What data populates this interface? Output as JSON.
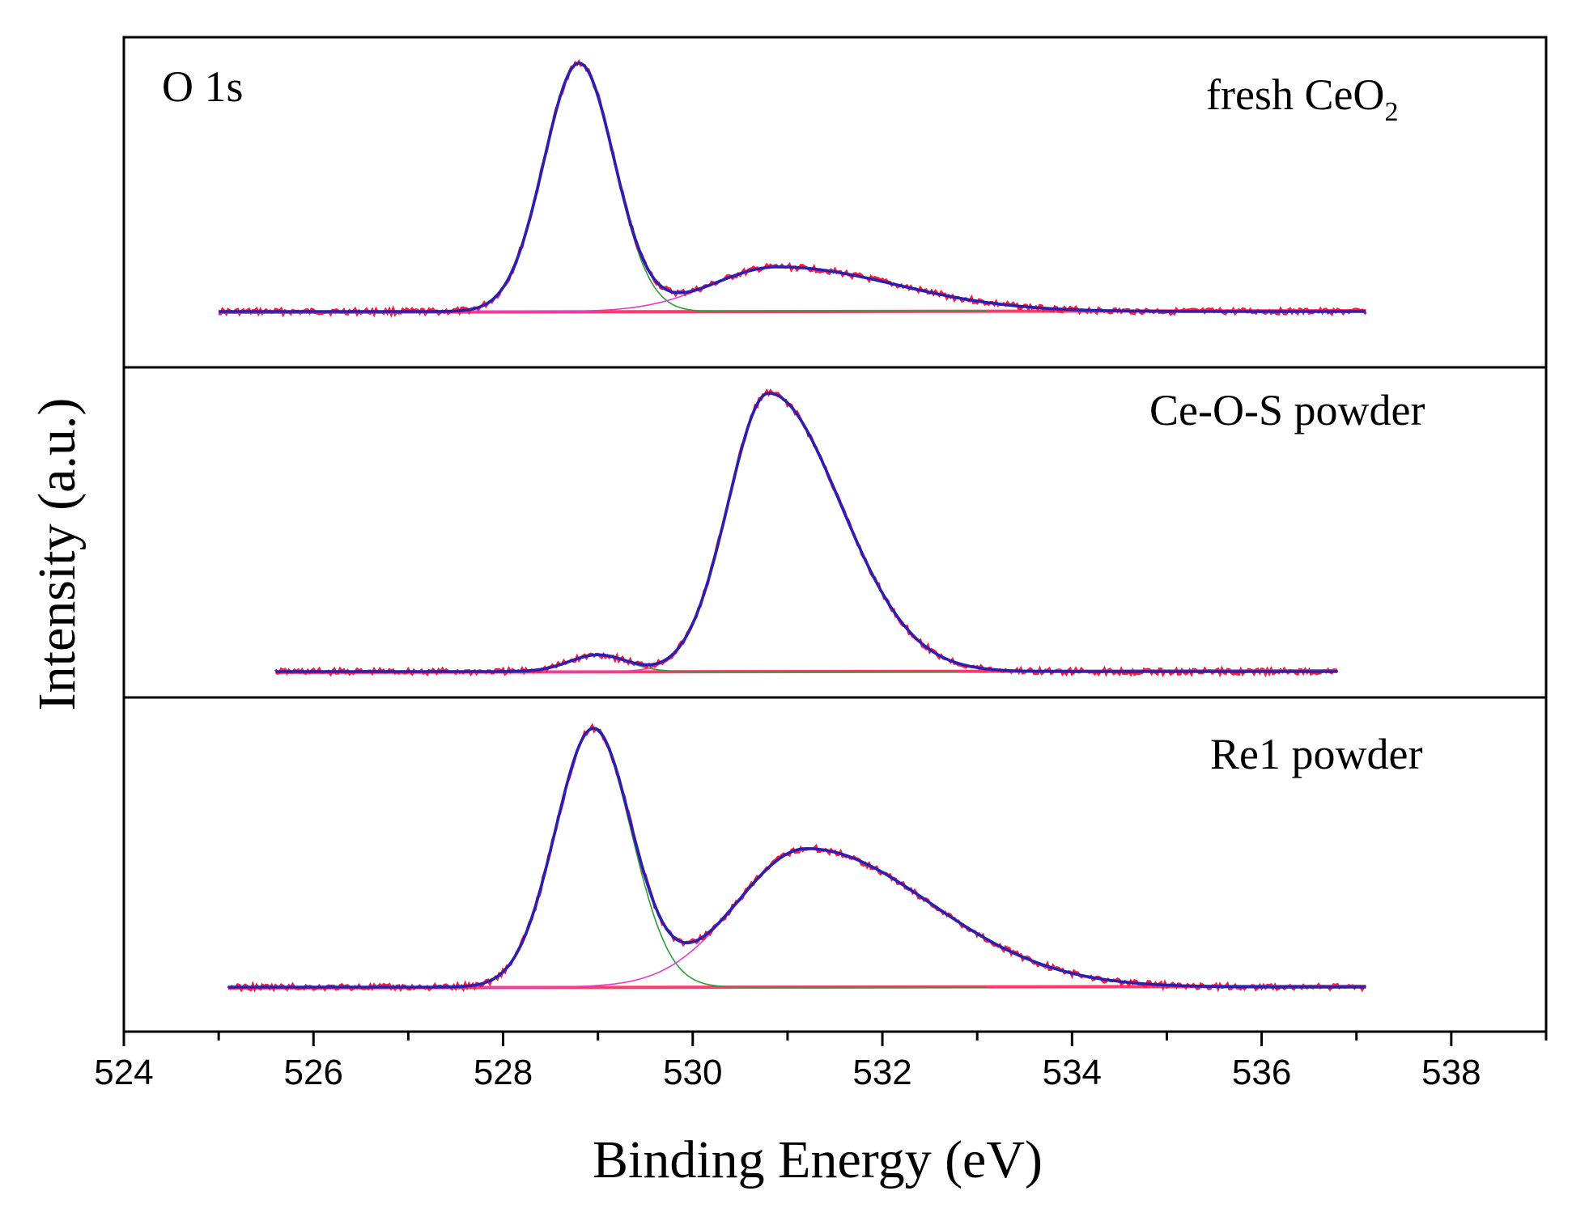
{
  "chart_data": {
    "type": "line",
    "xlabel": "Binding Energy (eV)",
    "ylabel": "Intensity (a.u.)",
    "xlim": [
      524,
      539
    ],
    "x_ticks": [
      "524",
      "526",
      "528",
      "530",
      "532",
      "534",
      "536",
      "538"
    ],
    "region_label": "O 1s",
    "colors": {
      "raw": "#ff1a3c",
      "envelope": "#2a1fb0",
      "component_lattice": "#2e9e3a",
      "component_surface": "#e040c8",
      "baseline": "#ff3a6a"
    },
    "panels": [
      {
        "label": "fresh CeO",
        "label_sub": "2",
        "x_range": [
          525.0,
          537.1
        ],
        "peaks": [
          {
            "center": 528.8,
            "height": 1.0,
            "sigma": 0.37
          },
          {
            "center": 530.9,
            "height": 0.18,
            "sigma": 0.85
          }
        ]
      },
      {
        "label": "Ce-O-S powder",
        "label_sub": "",
        "x_range": [
          525.6,
          536.8
        ],
        "peaks": [
          {
            "center": 529.0,
            "height": 0.06,
            "sigma": 0.3
          },
          {
            "center": 530.8,
            "height": 1.0,
            "sigma": 0.52
          }
        ]
      },
      {
        "label": "Re1 powder",
        "label_sub": "",
        "x_range": [
          525.1,
          537.1
        ],
        "peaks": [
          {
            "center": 528.95,
            "height": 0.93,
            "sigma": 0.4
          },
          {
            "center": 531.2,
            "height": 0.5,
            "sigma": 0.9
          }
        ]
      }
    ]
  }
}
